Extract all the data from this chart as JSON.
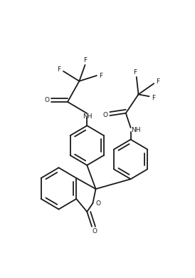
{
  "bg_color": "#ffffff",
  "line_color": "#1a1a1a",
  "line_width": 1.3,
  "figsize": [
    2.74,
    3.9
  ],
  "dpi": 100,
  "xlim": [
    0,
    10
  ],
  "ylim": [
    0,
    14
  ]
}
